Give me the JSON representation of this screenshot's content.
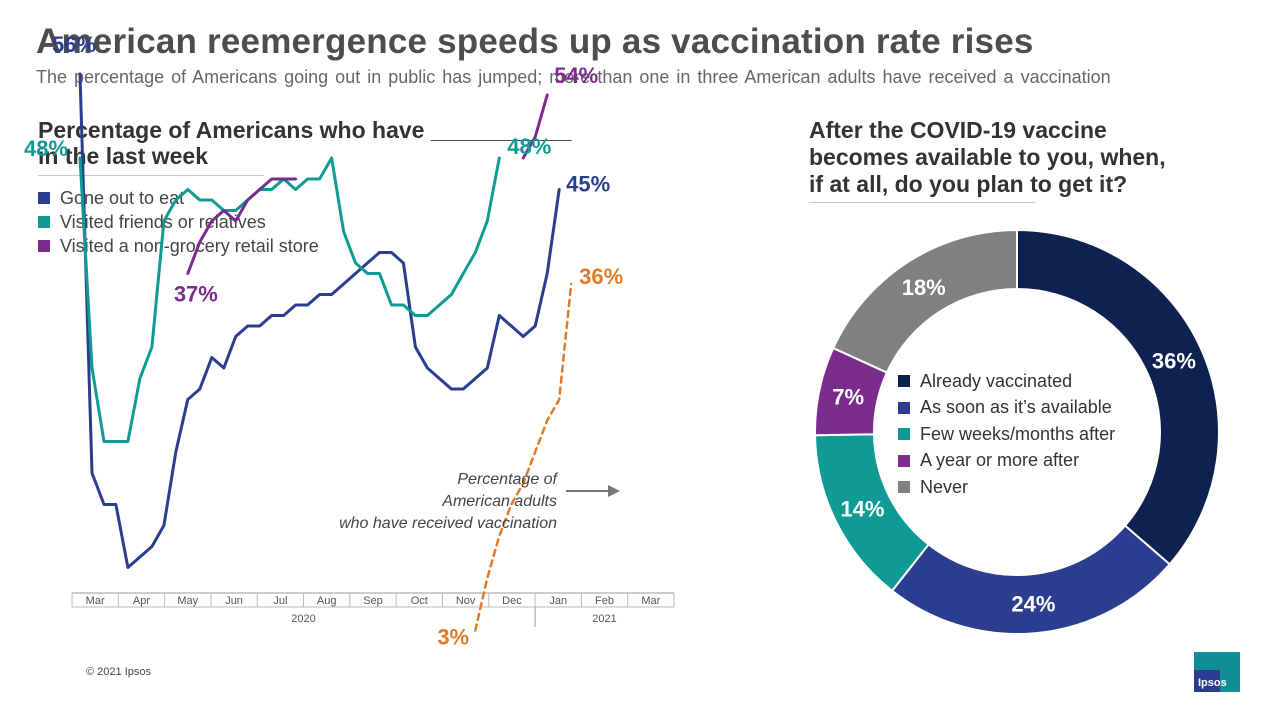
{
  "header": {
    "title": "American reemergence speeds up as vaccination rate rises",
    "subtitle": "The percentage of Americans going out in public has jumped; more than one in three American adults have received a vaccination"
  },
  "left_panel": {
    "heading_line1": "Percentage of Americans who have ___________",
    "heading_line2": "in the last week",
    "legend": [
      {
        "label": "Gone out to eat",
        "color": "#2b3d8f"
      },
      {
        "label": "Visited friends or relatives",
        "color": "#0f9b94"
      },
      {
        "label": "Visited a non-grocery retail store",
        "color": "#7b2d8e"
      }
    ],
    "annotation_lines": [
      "Percentage of",
      "American adults",
      "who have received vaccination"
    ]
  },
  "right_panel": {
    "heading_lines": [
      "After the COVID-19 vaccine",
      "becomes available to you, when,",
      "if at all, do you plan to get it?"
    ]
  },
  "chart_data": [
    {
      "type": "line",
      "title": "Percentage of Americans who have ___________ in the last week",
      "xlabel": "",
      "ylabel": "",
      "ylim": [
        0,
        70
      ],
      "x": [
        3.0,
        3.25,
        3.5,
        3.75,
        4.0,
        4.25,
        4.5,
        4.75,
        5.0,
        5.25,
        5.5,
        5.75,
        6.0,
        6.25,
        6.5,
        6.75,
        7.0,
        7.25,
        7.5,
        7.75,
        8.0,
        8.25,
        8.5,
        8.75,
        9.0,
        9.25,
        9.5,
        9.75,
        10.0,
        10.25,
        10.5,
        10.75,
        11.0,
        11.25,
        11.5,
        11.75,
        12.0,
        12.25,
        12.5,
        12.75,
        13.0,
        13.25,
        13.5,
        13.75,
        14.0,
        14.25,
        14.5,
        14.75,
        15.0,
        15.25
      ],
      "x_tick_labels": [
        "Mar",
        "Apr",
        "May",
        "Jun",
        "Jul",
        "Aug",
        "Sep",
        "Oct",
        "Nov",
        "Dec",
        "Jan",
        "Feb",
        "Mar"
      ],
      "year_labels": [
        "2020",
        "2021"
      ],
      "series": [
        {
          "name": "Gone out to eat",
          "color": "#2b3d8f",
          "values": [
            56,
            18,
            15,
            15,
            9,
            10,
            11,
            13,
            20,
            25,
            26,
            29,
            28,
            31,
            32,
            32,
            33,
            33,
            34,
            34,
            35,
            35,
            36,
            37,
            38,
            39,
            39,
            38,
            30,
            28,
            27,
            26,
            26,
            27,
            28,
            33,
            32,
            31,
            32,
            37,
            45,
            null,
            null,
            null,
            null,
            null,
            null,
            null,
            null,
            null
          ]
        },
        {
          "name": "Visited friends or relatives",
          "color": "#0f9b94",
          "values": [
            48,
            28,
            21,
            21,
            21,
            27,
            30,
            42,
            44,
            45,
            44,
            44,
            43,
            43,
            44,
            45,
            45,
            46,
            45,
            46,
            46,
            48,
            41,
            38,
            37,
            37,
            34,
            34,
            33,
            33,
            34,
            35,
            37,
            39,
            42,
            48,
            null,
            null,
            null,
            null,
            null,
            null,
            null,
            null,
            null,
            null,
            null,
            null,
            null,
            null
          ]
        },
        {
          "name": "Visited a non-grocery retail store",
          "color": "#7b2d8e",
          "values": [
            null,
            null,
            null,
            null,
            null,
            null,
            null,
            null,
            null,
            37,
            40,
            42,
            43,
            42,
            44,
            45,
            46,
            46,
            46,
            null,
            null,
            null,
            null,
            null,
            null,
            null,
            null,
            null,
            null,
            null,
            null,
            null,
            null,
            null,
            null,
            null,
            null,
            48,
            50,
            54,
            null,
            null,
            null,
            null,
            null,
            null,
            null,
            null,
            null,
            null
          ]
        },
        {
          "name": "Percentage of American adults who have received vaccination",
          "color": "#e07b27",
          "style": "dashed",
          "values": [
            null,
            null,
            null,
            null,
            null,
            null,
            null,
            null,
            null,
            null,
            null,
            null,
            null,
            null,
            null,
            null,
            null,
            null,
            null,
            null,
            null,
            null,
            null,
            null,
            null,
            null,
            null,
            null,
            null,
            null,
            null,
            null,
            null,
            3,
            8,
            12,
            15,
            17,
            20,
            23,
            25,
            36,
            null,
            null,
            null,
            null,
            null,
            null,
            null,
            null
          ]
        }
      ],
      "data_labels": [
        {
          "text": "56%",
          "series": "Gone out to eat",
          "position": "start"
        },
        {
          "text": "48%",
          "series": "Visited friends or relatives",
          "position": "start"
        },
        {
          "text": "37%",
          "series": "Visited a non-grocery retail store",
          "position": "start"
        },
        {
          "text": "54%",
          "series": "Visited a non-grocery retail store",
          "position": "end"
        },
        {
          "text": "48%",
          "series": "Visited friends or relatives",
          "position": "end"
        },
        {
          "text": "45%",
          "series": "Gone out to eat",
          "position": "end"
        },
        {
          "text": "36%",
          "series": "Percentage of American adults who have received vaccination",
          "position": "end"
        },
        {
          "text": "3%",
          "series": "Percentage of American adults who have received vaccination",
          "position": "start"
        }
      ]
    },
    {
      "type": "pie",
      "variant": "donut",
      "title": "After the COVID-19 vaccine becomes available to you, when, if at all, do you plan to get it?",
      "slices": [
        {
          "label": "Already vaccinated",
          "value": 36,
          "text": "36%",
          "color": "#0f2150"
        },
        {
          "label": "As soon as it’s available",
          "value": 24,
          "text": "24%",
          "color": "#2b3d8f"
        },
        {
          "label": "Few weeks/months after",
          "value": 14,
          "text": "14%",
          "color": "#0f9b94"
        },
        {
          "label": "A year or more after",
          "value": 7,
          "text": "7%",
          "color": "#7b2d8e"
        },
        {
          "label": "Never",
          "value": 18,
          "text": "18%",
          "color": "#808080"
        }
      ]
    }
  ],
  "footer": {
    "copyright": "© 2021 Ipsos",
    "logo_text": "Ipsos"
  }
}
